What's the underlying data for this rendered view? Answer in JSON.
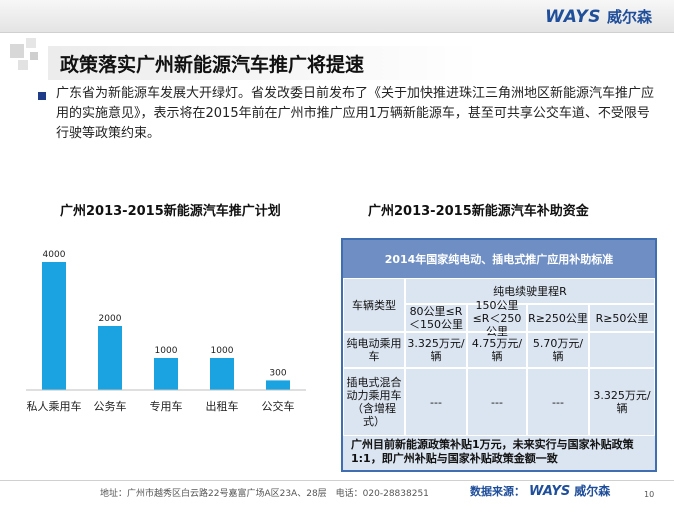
{
  "header": {
    "logo_en": "WAYS",
    "logo_cn": "威尔森"
  },
  "slide": {
    "title": "政策落实广州新能源汽车推广将提速",
    "body": "广东省为新能源车发展大开绿灯。省发改委日前发布了《关于加快推进珠江三角洲地区新能源汽车推广应用的实施意见》，表示将在2015年前在广州市推广应用1万辆新能源车，甚至可共享公交车道、不受限号行驶等政策约束。"
  },
  "left_chart_title": "广州2013-2015新能源汽车推广计划",
  "right_chart_title": "广州2013-2015新能源汽车补助资金",
  "chart_data": {
    "type": "bar",
    "title": "广州2013-2015新能源汽车推广计划",
    "categories": [
      "私人乘用车",
      "公务车",
      "专用车",
      "出租车",
      "公交车"
    ],
    "values": [
      4000,
      2000,
      1000,
      1000,
      300
    ],
    "ylim": [
      0,
      4000
    ],
    "grid": false,
    "color": "#1aa3e0"
  },
  "table": {
    "header": "2014年国家纯电动、插电式推广应用补助标准",
    "row_header_vehicle": "车辆类型",
    "col_group": "纯电续驶里程R",
    "cols": [
      "80公里≤R＜150公里",
      "150公里≤R＜250公里",
      "R≥250公里",
      "R≥50公里"
    ],
    "rows": [
      {
        "type": "纯电动乘用车",
        "values": [
          "3.325万元/辆",
          "4.75万元/辆",
          "5.70万元/辆",
          ""
        ]
      },
      {
        "type": "插电式混合动力乘用车（含增程式）",
        "values": [
          "---",
          "---",
          "---",
          "3.325万元/辆"
        ]
      }
    ],
    "footer": "广州目前新能源政策补贴1万元，未来实行与国家补贴政策1:1，即广州补贴与国家补贴政策金额一致"
  },
  "footer": {
    "address": "地址：广州市越秀区白云路22号嘉富广场A区23A、28层　电话：020-28838251",
    "source_label": "数据来源：",
    "source_en": "WAYS",
    "source_cn": "威尔森",
    "page": "10"
  }
}
